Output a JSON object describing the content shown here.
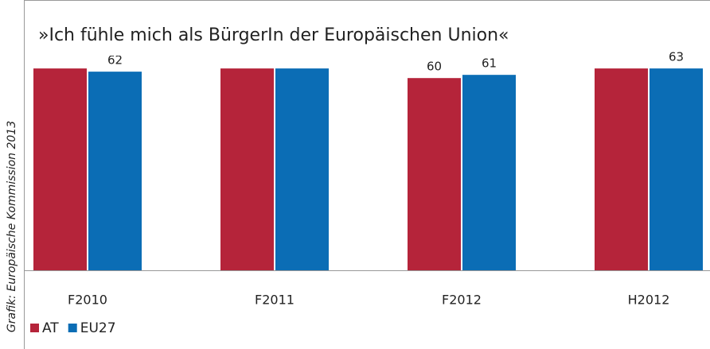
{
  "chart_data": {
    "type": "bar",
    "title": "»Ich fühle mich als BürgerIn der Europäischen Union«",
    "source": "Grafik: Europäische Kommission 2013",
    "categories": [
      "F2010",
      "F2011",
      "F2012",
      "H2012"
    ],
    "series": [
      {
        "name": "AT",
        "color": "#b5243a",
        "values": [
          63,
          63,
          60,
          63
        ],
        "value_labels": [
          null,
          null,
          "60",
          null
        ]
      },
      {
        "name": "EU27",
        "color": "#0b6db5",
        "values": [
          62,
          63,
          61,
          63
        ],
        "value_labels": [
          "62",
          null,
          "61",
          "63"
        ]
      }
    ],
    "ylim": [
      0,
      80
    ],
    "legend": "bottom-left"
  }
}
